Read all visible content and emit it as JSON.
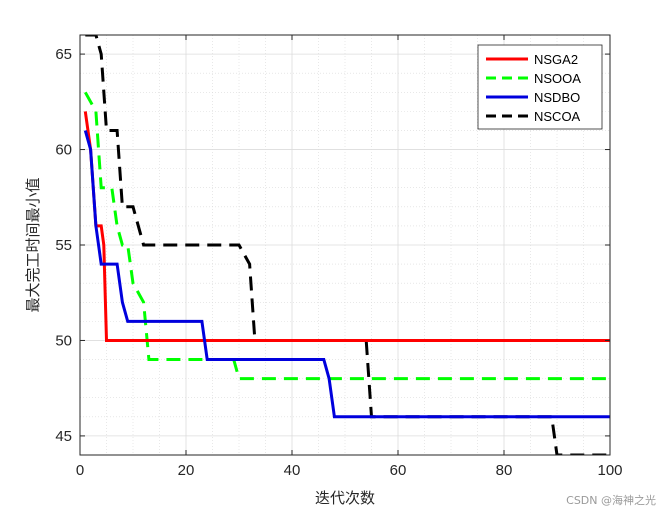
{
  "chart_data": {
    "type": "line",
    "title": "",
    "xlabel": "迭代次数",
    "ylabel": "最大完工时间最小值",
    "xlim": [
      0,
      100
    ],
    "ylim": [
      44,
      66
    ],
    "xticks": [
      0,
      20,
      40,
      60,
      80,
      100
    ],
    "yticks": [
      45,
      50,
      55,
      60,
      65
    ],
    "grid": true,
    "minor_grid": true,
    "legend_position": "top-right",
    "series": [
      {
        "name": "NSGA2",
        "color": "#ff0000",
        "dash": "solid",
        "x": [
          1,
          2,
          3,
          4,
          4.5,
          5,
          100
        ],
        "y": [
          62,
          60,
          56,
          56,
          55,
          50,
          50
        ]
      },
      {
        "name": "NSOOA",
        "color": "#00ff00",
        "dash": "dashed",
        "x": [
          1,
          2,
          3,
          4,
          6,
          7,
          8,
          9,
          10,
          12,
          13,
          29,
          30,
          100
        ],
        "y": [
          63,
          62.5,
          62,
          58,
          58,
          56,
          55,
          55,
          53,
          52,
          49,
          49,
          48,
          48
        ]
      },
      {
        "name": "NSDBO",
        "color": "#0000dd",
        "dash": "solid",
        "x": [
          1,
          2,
          3,
          4,
          7,
          8,
          9,
          23,
          24,
          46,
          47,
          48,
          100
        ],
        "y": [
          61,
          60,
          56,
          54,
          54,
          52,
          51,
          51,
          49,
          49,
          48,
          46,
          46
        ]
      },
      {
        "name": "NSCOA",
        "color": "#000000",
        "dash": "dashed",
        "x": [
          1,
          3,
          4,
          5,
          7,
          8,
          10,
          12,
          30,
          32,
          33,
          54,
          55,
          89,
          90,
          100
        ],
        "y": [
          66,
          66,
          65,
          61,
          61,
          57,
          57,
          55,
          55,
          54,
          50,
          50,
          46,
          46,
          44,
          44
        ]
      }
    ]
  },
  "watermark": "CSDN @海神之光"
}
